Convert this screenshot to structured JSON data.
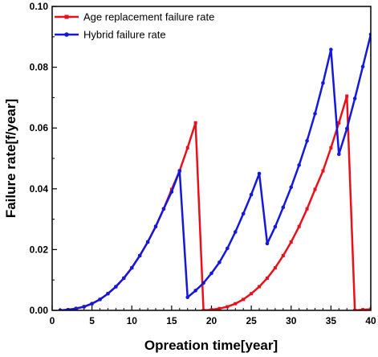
{
  "chart_data": {
    "type": "line",
    "xlabel": "Opreation time[year]",
    "ylabel": "Failure rate[f/year]",
    "xlim": [
      0,
      40
    ],
    "ylim": [
      0,
      0.1
    ],
    "xticks": [
      "0",
      "5",
      "10",
      "15",
      "20",
      "25",
      "30",
      "35",
      "40"
    ],
    "yticks": [
      "0.00",
      "0.02",
      "0.04",
      "0.06",
      "0.08",
      "0.10"
    ],
    "grid": false,
    "legend_position": "top-left",
    "series": [
      {
        "name": "Age replacement failure rate",
        "color": "#e8101a",
        "marker": "square",
        "points": [
          [
            1,
            0.0
          ],
          [
            2,
            0.0002
          ],
          [
            3,
            0.0006
          ],
          [
            4,
            0.0012
          ],
          [
            5,
            0.0022
          ],
          [
            6,
            0.0036
          ],
          [
            7,
            0.0055
          ],
          [
            8,
            0.0078
          ],
          [
            9,
            0.0106
          ],
          [
            10,
            0.014
          ],
          [
            11,
            0.018
          ],
          [
            12,
            0.0225
          ],
          [
            13,
            0.0276
          ],
          [
            14,
            0.0334
          ],
          [
            15,
            0.0398
          ],
          [
            16,
            0.0459
          ],
          [
            17,
            0.0535
          ],
          [
            18,
            0.0617
          ],
          [
            19,
            0.0
          ],
          [
            20,
            0.0002
          ],
          [
            21,
            0.0006
          ],
          [
            22,
            0.0012
          ],
          [
            23,
            0.0022
          ],
          [
            24,
            0.0036
          ],
          [
            25,
            0.0055
          ],
          [
            26,
            0.0078
          ],
          [
            27,
            0.0106
          ],
          [
            28,
            0.014
          ],
          [
            29,
            0.018
          ],
          [
            30,
            0.0225
          ],
          [
            31,
            0.0276
          ],
          [
            32,
            0.0334
          ],
          [
            33,
            0.0398
          ],
          [
            34,
            0.0459
          ],
          [
            35,
            0.0535
          ],
          [
            36,
            0.0617
          ],
          [
            37,
            0.0705
          ],
          [
            38,
            0.0
          ],
          [
            39,
            0.0002
          ],
          [
            40,
            0.0004
          ]
        ]
      },
      {
        "name": "Hybrid failure rate",
        "color": "#1418d8",
        "marker": "circle",
        "points": [
          [
            1,
            0.0
          ],
          [
            2,
            0.0002
          ],
          [
            3,
            0.0006
          ],
          [
            4,
            0.0012
          ],
          [
            5,
            0.0022
          ],
          [
            6,
            0.0036
          ],
          [
            7,
            0.0055
          ],
          [
            8,
            0.0078
          ],
          [
            9,
            0.0106
          ],
          [
            10,
            0.014
          ],
          [
            11,
            0.018
          ],
          [
            12,
            0.0225
          ],
          [
            13,
            0.0276
          ],
          [
            14,
            0.0334
          ],
          [
            15,
            0.039
          ],
          [
            16,
            0.0459
          ],
          [
            17,
            0.0043
          ],
          [
            18,
            0.0065
          ],
          [
            19,
            0.009
          ],
          [
            20,
            0.0122
          ],
          [
            21,
            0.0158
          ],
          [
            22,
            0.0204
          ],
          [
            23,
            0.0258
          ],
          [
            24,
            0.0318
          ],
          [
            25,
            0.0381
          ],
          [
            26,
            0.045
          ],
          [
            27,
            0.022
          ],
          [
            28,
            0.0275
          ],
          [
            29,
            0.0339
          ],
          [
            30,
            0.0405
          ],
          [
            31,
            0.0478
          ],
          [
            32,
            0.0558
          ],
          [
            33,
            0.0647
          ],
          [
            34,
            0.0748
          ],
          [
            35,
            0.0858
          ],
          [
            36,
            0.0514
          ],
          [
            37,
            0.0598
          ],
          [
            38,
            0.0697
          ],
          [
            39,
            0.0802
          ],
          [
            40,
            0.0908
          ]
        ]
      }
    ]
  }
}
